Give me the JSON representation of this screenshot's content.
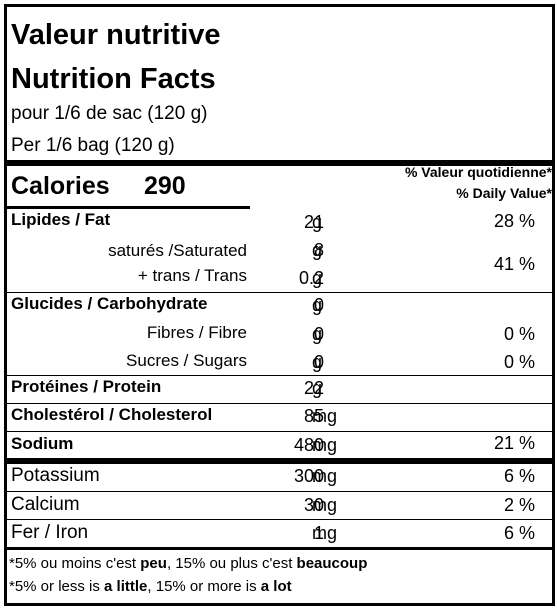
{
  "header": {
    "title_fr": "Valeur nutritive",
    "title_en": "Nutrition Facts",
    "serving_fr": "pour 1/6 de sac (120 g)",
    "serving_en": "Per 1/6 bag (120 g)"
  },
  "calories": {
    "label": "Calories",
    "value": "290"
  },
  "dv_header": {
    "fr": "% Valeur quotidienne*",
    "en": "% Daily Value*"
  },
  "rows": {
    "fat": {
      "label": "Lipides / Fat",
      "amount": "21",
      "unit": "g",
      "dv": "28 %"
    },
    "saturated": {
      "label": "saturés /Saturated",
      "amount": "8",
      "unit": "g"
    },
    "trans": {
      "label": "+ trans / Trans",
      "amount": "0.2",
      "unit": "g"
    },
    "sat_trans_dv": "41 %",
    "carb": {
      "label": "Glucides / Carbohydrate",
      "amount": "0",
      "unit": "g"
    },
    "fibre": {
      "label": "Fibres / Fibre",
      "amount": "0",
      "unit": "g",
      "dv": "0 %"
    },
    "sugars": {
      "label": "Sucres / Sugars",
      "amount": "0",
      "unit": "g",
      "dv": "0 %"
    },
    "protein": {
      "label": "Protéines / Protein",
      "amount": "22",
      "unit": "g"
    },
    "cholesterol": {
      "label": "Cholestérol / Cholesterol",
      "amount": "85",
      "unit": "mg"
    },
    "sodium": {
      "label": "Sodium",
      "amount": "480",
      "unit": "mg",
      "dv": "21 %"
    },
    "potassium": {
      "label": "Potassium",
      "amount": "300",
      "unit": "mg",
      "dv": "6 %"
    },
    "calcium": {
      "label": "Calcium",
      "amount": "30",
      "unit": "mg",
      "dv": "2 %"
    },
    "iron": {
      "label": "Fer / Iron",
      "amount": "1",
      "unit": "mg",
      "dv": "6 %"
    }
  },
  "footnote": {
    "fr": {
      "a": "*5% ou moins c'est ",
      "b": "peu",
      "c": ", 15% ou plus c'est ",
      "d": "beaucoup"
    },
    "en": {
      "a": "*5% or less is ",
      "b": "a little",
      "c": ", 15% or more is ",
      "d": "a lot"
    }
  }
}
